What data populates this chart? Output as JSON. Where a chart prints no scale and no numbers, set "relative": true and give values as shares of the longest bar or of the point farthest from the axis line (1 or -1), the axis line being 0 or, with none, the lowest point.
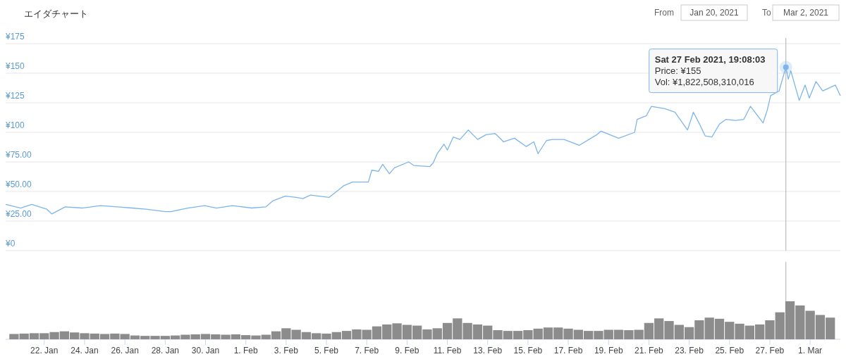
{
  "chart_data": [
    {
      "type": "line",
      "title": "エイダチャート",
      "color": "#7cb5ec",
      "grid": "y",
      "tick_labels": "y",
      "x": [
        "2021-01-20T02:00",
        "2021-01-20T20:00",
        "2021-01-21T09:00",
        "2021-01-22T03:00",
        "2021-01-22T09:00",
        "2021-01-23T01:00",
        "2021-01-23T21:00",
        "2021-01-24T19:00",
        "2021-01-25T15:00",
        "2021-01-26T08:00",
        "2021-01-27T01:00",
        "2021-01-28T00:00",
        "2021-01-28T07:00",
        "2021-01-29T03:00",
        "2021-01-29T23:00",
        "2021-01-30T13:00",
        "2021-01-31T08:00",
        "2021-02-01T07:00",
        "2021-02-02T00:00",
        "2021-02-02T08:00",
        "2021-02-02T23:00",
        "2021-02-03T12:00",
        "2021-02-03T20:00",
        "2021-02-04T05:00",
        "2021-02-05T03:00",
        "2021-02-05T14:00",
        "2021-02-05T21:00",
        "2021-02-06T07:00",
        "2021-02-06T18:00",
        "2021-02-07T02:00",
        "2021-02-07T06:00",
        "2021-02-07T14:00",
        "2021-02-07T19:00",
        "2021-02-08T03:00",
        "2021-02-08T09:00",
        "2021-02-09T02:00",
        "2021-02-09T08:00",
        "2021-02-10T03:00",
        "2021-02-10T07:00",
        "2021-02-10T12:00",
        "2021-02-10T20:00",
        "2021-02-11T00:00",
        "2021-02-11T07:00",
        "2021-02-11T15:00",
        "2021-02-12T01:00",
        "2021-02-12T12:00",
        "2021-02-12T22:00",
        "2021-02-13T09:00",
        "2021-02-13T19:00",
        "2021-02-14T08:00",
        "2021-02-14T22:00",
        "2021-02-15T07:00",
        "2021-02-15T12:00",
        "2021-02-15T22:00",
        "2021-02-16T05:00",
        "2021-02-16T19:00",
        "2021-02-17T13:00",
        "2021-02-18T10:00",
        "2021-02-18T15:00",
        "2021-02-19T12:00",
        "2021-02-20T07:00",
        "2021-02-20T10:00",
        "2021-02-20T21:00",
        "2021-02-21T03:00",
        "2021-02-21T19:00",
        "2021-02-22T07:00",
        "2021-02-22T22:00",
        "2021-02-23T05:00",
        "2021-02-23T13:00",
        "2021-02-23T19:00",
        "2021-02-24T03:00",
        "2021-02-24T12:00",
        "2021-02-24T20:00",
        "2021-02-25T07:00",
        "2021-02-25T17:00",
        "2021-02-26T01:00",
        "2021-02-26T16:00",
        "2021-02-26T21:00",
        "2021-02-27T01:00",
        "2021-02-27T11:00",
        "2021-02-27T19:08",
        "2021-02-27T22:00",
        "2021-02-28T01:00",
        "2021-02-28T11:00",
        "2021-02-28T18:00",
        "2021-02-28T23:00",
        "2021-03-01T07:00",
        "2021-03-01T15:00",
        "2021-03-02T06:00",
        "2021-03-02T12:00"
      ],
      "values": [
        39,
        36,
        39,
        35,
        31,
        37,
        36,
        38,
        37,
        36,
        35,
        33,
        33,
        36,
        38,
        36,
        38,
        36,
        37,
        42,
        46,
        45,
        44,
        47,
        45,
        51,
        55,
        58,
        58,
        58,
        68,
        67,
        73,
        65,
        70,
        75,
        72,
        71,
        74,
        82,
        90,
        85,
        96,
        94,
        102,
        94,
        98,
        99,
        92,
        95,
        88,
        92,
        82,
        93,
        94,
        94,
        89,
        98,
        101,
        95,
        100,
        111,
        114,
        122,
        120,
        117,
        102,
        117,
        106,
        97,
        96,
        107,
        111,
        110,
        111,
        122,
        108,
        119,
        131,
        135,
        155,
        145,
        152,
        127,
        140,
        129,
        143,
        135,
        140,
        131
      ],
      "xlim": [
        "2021-01-20T02:00",
        "2021-03-02T12:00"
      ],
      "ylim": [
        0,
        175
      ],
      "yticks": [
        {
          "value": 0,
          "label": "¥0"
        },
        {
          "value": 25,
          "label": "¥25.00"
        },
        {
          "value": 50,
          "label": "¥50.00"
        },
        {
          "value": 75,
          "label": "¥75.00"
        },
        {
          "value": 100,
          "label": "¥100"
        },
        {
          "value": 125,
          "label": "¥125"
        },
        {
          "value": 150,
          "label": "¥150"
        },
        {
          "value": 175,
          "label": "¥175"
        }
      ],
      "ref_lines": [
        {
          "axis": "x",
          "value": "2021-02-27T19:08",
          "color": "#b0b0b0"
        }
      ],
      "annotations": [
        "From",
        "Jan 20, 2021",
        "To",
        "Mar 2, 2021",
        {
          "text": "Sat 27 Feb 2021, 19:08:03\nPrice: ¥155\nVol: ¥1,822,508,310,016",
          "x": "2021-02-27T19:08",
          "y": 155
        }
      ]
    },
    {
      "type": "bar",
      "relative": true,
      "color": "#8c8c8c",
      "tick_labels": "x",
      "x": [
        "2021-01-20T12:00",
        "2021-01-21",
        "2021-01-21T12:00",
        "2021-01-22",
        "2021-01-22T12:00",
        "2021-01-23",
        "2021-01-23T12:00",
        "2021-01-24",
        "2021-01-24T12:00",
        "2021-01-25",
        "2021-01-25T12:00",
        "2021-01-26",
        "2021-01-26T12:00",
        "2021-01-27",
        "2021-01-27T12:00",
        "2021-01-28",
        "2021-01-28T12:00",
        "2021-01-29",
        "2021-01-29T12:00",
        "2021-01-30",
        "2021-01-30T12:00",
        "2021-01-31",
        "2021-01-31T12:00",
        "2021-02-01",
        "2021-02-01T12:00",
        "2021-02-02",
        "2021-02-02T12:00",
        "2021-02-03",
        "2021-02-03T12:00",
        "2021-02-04",
        "2021-02-04T12:00",
        "2021-02-05",
        "2021-02-05T12:00",
        "2021-02-06",
        "2021-02-06T12:00",
        "2021-02-07",
        "2021-02-07T12:00",
        "2021-02-08",
        "2021-02-08T12:00",
        "2021-02-09",
        "2021-02-09T12:00",
        "2021-02-10",
        "2021-02-10T12:00",
        "2021-02-11",
        "2021-02-11T12:00",
        "2021-02-12",
        "2021-02-12T12:00",
        "2021-02-13",
        "2021-02-13T12:00",
        "2021-02-14",
        "2021-02-14T12:00",
        "2021-02-15",
        "2021-02-15T12:00",
        "2021-02-16",
        "2021-02-16T12:00",
        "2021-02-17",
        "2021-02-17T12:00",
        "2021-02-18",
        "2021-02-18T12:00",
        "2021-02-19",
        "2021-02-19T12:00",
        "2021-02-20",
        "2021-02-20T12:00",
        "2021-02-21",
        "2021-02-21T12:00",
        "2021-02-22",
        "2021-02-22T12:00",
        "2021-02-23",
        "2021-02-23T12:00",
        "2021-02-24",
        "2021-02-24T12:00",
        "2021-02-25",
        "2021-02-25T12:00",
        "2021-02-26",
        "2021-02-26T12:00",
        "2021-02-27",
        "2021-02-27T12:00",
        "2021-02-28",
        "2021-02-28T12:00",
        "2021-03-01",
        "2021-03-01T12:00",
        "2021-03-02"
      ],
      "values": [
        0.14,
        0.15,
        0.16,
        0.16,
        0.19,
        0.21,
        0.18,
        0.16,
        0.15,
        0.14,
        0.15,
        0.14,
        0.1,
        0.09,
        0.09,
        0.09,
        0.1,
        0.12,
        0.13,
        0.14,
        0.13,
        0.12,
        0.13,
        0.11,
        0.1,
        0.12,
        0.21,
        0.29,
        0.25,
        0.19,
        0.16,
        0.15,
        0.19,
        0.22,
        0.26,
        0.25,
        0.34,
        0.39,
        0.42,
        0.38,
        0.36,
        0.26,
        0.29,
        0.43,
        0.55,
        0.43,
        0.39,
        0.36,
        0.24,
        0.22,
        0.22,
        0.24,
        0.28,
        0.31,
        0.31,
        0.28,
        0.25,
        0.22,
        0.22,
        0.25,
        0.25,
        0.24,
        0.25,
        0.43,
        0.55,
        0.48,
        0.38,
        0.32,
        0.5,
        0.57,
        0.54,
        0.46,
        0.41,
        0.36,
        0.39,
        0.5,
        0.71,
        1,
        0.89,
        0.75,
        0.64,
        0.57
      ],
      "xlim": [
        "2021-01-20T02:00",
        "2021-03-02T12:00"
      ],
      "xticks": [
        {
          "value": "2021-01-22",
          "label": "22. Jan"
        },
        {
          "value": "2021-01-24",
          "label": "24. Jan"
        },
        {
          "value": "2021-01-26",
          "label": "26. Jan"
        },
        {
          "value": "2021-01-28",
          "label": "28. Jan"
        },
        {
          "value": "2021-01-30",
          "label": "30. Jan"
        },
        {
          "value": "2021-02-01",
          "label": "1. Feb"
        },
        {
          "value": "2021-02-03",
          "label": "3. Feb"
        },
        {
          "value": "2021-02-05",
          "label": "5. Feb"
        },
        {
          "value": "2021-02-07",
          "label": "7. Feb"
        },
        {
          "value": "2021-02-09",
          "label": "9. Feb"
        },
        {
          "value": "2021-02-11",
          "label": "11. Feb"
        },
        {
          "value": "2021-02-13",
          "label": "13. Feb"
        },
        {
          "value": "2021-02-15",
          "label": "15. Feb"
        },
        {
          "value": "2021-02-17",
          "label": "17. Feb"
        },
        {
          "value": "2021-02-19",
          "label": "19. Feb"
        },
        {
          "value": "2021-02-21",
          "label": "21. Feb"
        },
        {
          "value": "2021-02-23",
          "label": "23. Feb"
        },
        {
          "value": "2021-02-25",
          "label": "25. Feb"
        },
        {
          "value": "2021-02-27",
          "label": "27. Feb"
        },
        {
          "value": "2021-03-01",
          "label": "1. Mar"
        }
      ],
      "ref_lines": [
        {
          "axis": "x",
          "value": "2021-02-27T19:08",
          "color": "#b0b0b0"
        }
      ]
    }
  ]
}
